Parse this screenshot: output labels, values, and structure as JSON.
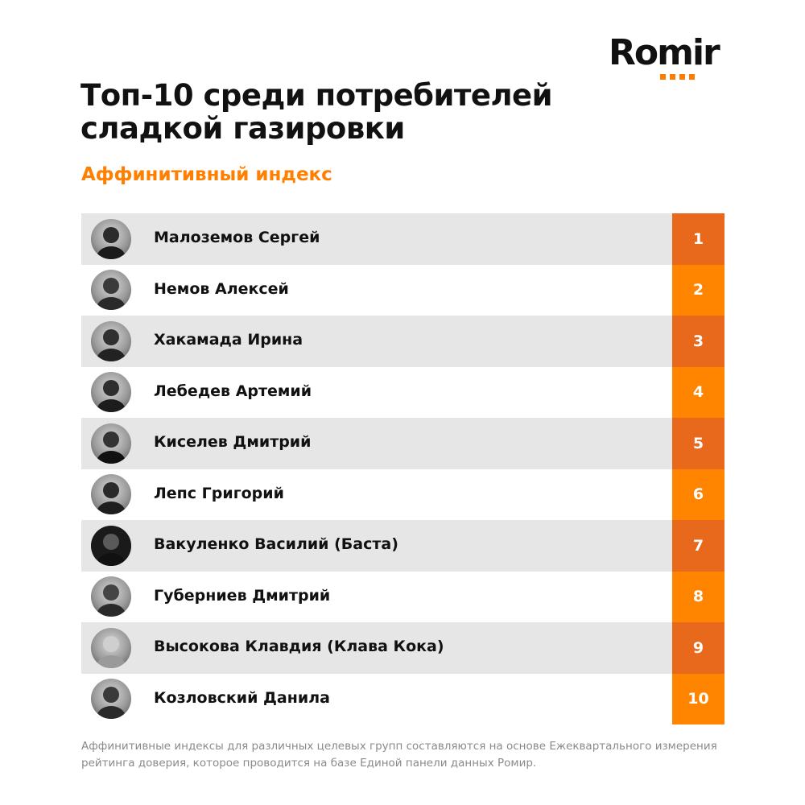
{
  "logo": {
    "text": "Romir"
  },
  "title": "Топ-10 среди потребителей сладкой газировки",
  "subtitle": "Аффинитивный индекс",
  "ranking": [
    {
      "name": "Малоземов Сергей",
      "rank": "1"
    },
    {
      "name": "Немов Алексей",
      "rank": "2"
    },
    {
      "name": "Хакамада Ирина",
      "rank": "3"
    },
    {
      "name": "Лебедев Артемий",
      "rank": "4"
    },
    {
      "name": "Киселев Дмитрий",
      "rank": "5"
    },
    {
      "name": "Лепс Григорий",
      "rank": "6"
    },
    {
      "name": "Вакуленко Василий (Баста)",
      "rank": "7"
    },
    {
      "name": "Губерниев Дмитрий",
      "rank": "8"
    },
    {
      "name": "Высокова Клавдия (Клава Кока)",
      "rank": "9"
    },
    {
      "name": "Козловский Данила",
      "rank": "10"
    }
  ],
  "footnote": "Аффинитивные индексы для различных целевых групп составляются на основе Ежеквартального измерения рейтинга доверия, которое проводится на базе Единой панели данных Ромир.",
  "colors": {
    "accent": "#ff8400",
    "rank_dark": "#e8681c",
    "row_shade": "#e6e6e6"
  }
}
